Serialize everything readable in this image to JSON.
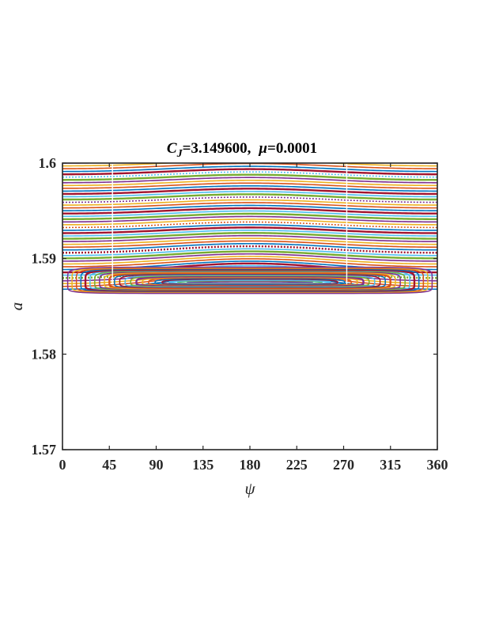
{
  "chart_data": {
    "type": "line",
    "title": {
      "cj_symbol": "C",
      "cj_subscript": "J",
      "cj_value": "=3.149600,",
      "mu_symbol": "μ",
      "mu_value": "=0.0001"
    },
    "xlabel": "ψ",
    "ylabel": "a",
    "xlim": [
      0,
      360
    ],
    "ylim": [
      1.57,
      1.6
    ],
    "x_ticks": [
      "0",
      "45",
      "90",
      "135",
      "180",
      "225",
      "270",
      "315",
      "360"
    ],
    "y_ticks": [
      "1.57",
      "1.58",
      "1.59",
      "1.6"
    ],
    "grid": false,
    "legend": "none",
    "colors": [
      "#0072BD",
      "#D95319",
      "#EDB120",
      "#7E2F8E",
      "#77AC30",
      "#4DBEEE",
      "#A2142F"
    ],
    "resonance_center": {
      "psi": 180,
      "a": 1.5875
    },
    "separatrix_a": 1.5866,
    "circulating_curves": {
      "a_min": 1.5868,
      "a_max": 1.6,
      "count": 46,
      "amplitude_near": 0.0011,
      "amplitude_far": 0.0004
    },
    "libration_curves": {
      "count": 22,
      "max_half_height": 0.0016
    }
  }
}
